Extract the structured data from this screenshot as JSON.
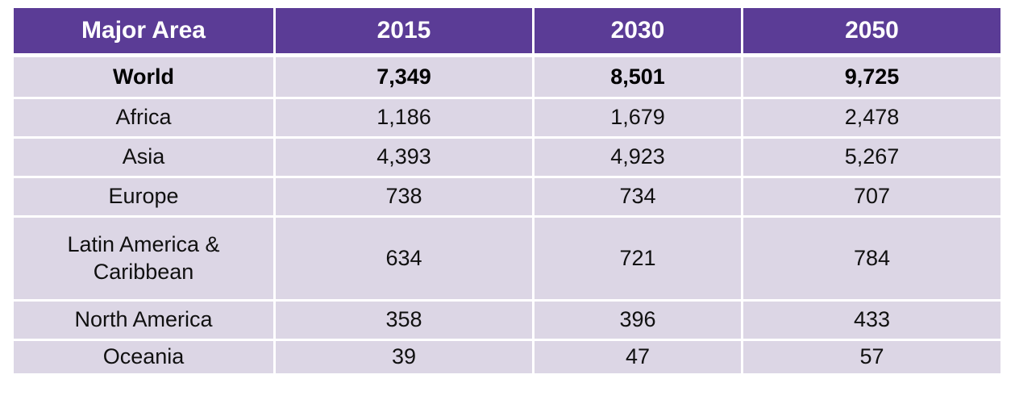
{
  "colors": {
    "header_bg": "#5b3c96",
    "row_bg": "#dcd6e5",
    "header_text": "#ffffff",
    "body_text": "#000000",
    "grid_gap": "#ffffff"
  },
  "table": {
    "columns": [
      "Major Area",
      "2015",
      "2030",
      "2050"
    ],
    "rows": [
      {
        "area": "World",
        "values": [
          "7,349",
          "8,501",
          "9,725"
        ],
        "emphasis": true
      },
      {
        "area": "Africa",
        "values": [
          "1,186",
          "1,679",
          "2,478"
        ],
        "emphasis": false
      },
      {
        "area": "Asia",
        "values": [
          "4,393",
          "4,923",
          "5,267"
        ],
        "emphasis": false
      },
      {
        "area": "Europe",
        "values": [
          "738",
          "734",
          "707"
        ],
        "emphasis": false
      },
      {
        "area": "Latin America & Caribbean",
        "values": [
          "634",
          "721",
          "784"
        ],
        "emphasis": false
      },
      {
        "area": "North America",
        "values": [
          "358",
          "396",
          "433"
        ],
        "emphasis": false
      },
      {
        "area": "Oceania",
        "values": [
          "39",
          "47",
          "57"
        ],
        "emphasis": false
      }
    ]
  },
  "chart_data": {
    "type": "table",
    "title": "",
    "columns": [
      "Major Area",
      "2015",
      "2030",
      "2050"
    ],
    "rows": [
      [
        "World",
        7349,
        8501,
        9725
      ],
      [
        "Africa",
        1186,
        1679,
        2478
      ],
      [
        "Asia",
        4393,
        4923,
        5267
      ],
      [
        "Europe",
        738,
        734,
        707
      ],
      [
        "Latin America & Caribbean",
        634,
        721,
        784
      ],
      [
        "North America",
        358,
        396,
        433
      ],
      [
        "Oceania",
        39,
        47,
        57
      ]
    ]
  }
}
